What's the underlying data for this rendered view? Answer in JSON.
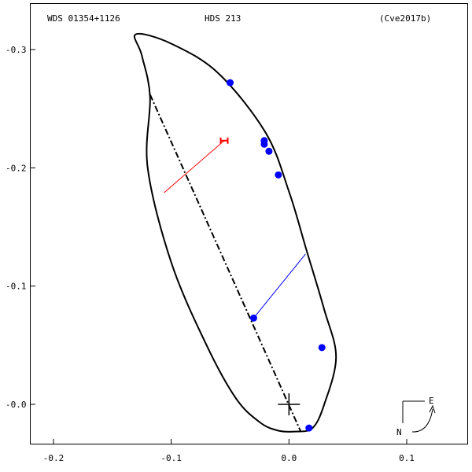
{
  "header": {
    "left": "WDS 01354+1126",
    "center": "HDS 213",
    "right": "(Cve2017b)"
  },
  "chart_data": {
    "type": "scatter",
    "title": "",
    "xlabel": "",
    "ylabel": "",
    "xlim": [
      -0.2,
      0.135
    ],
    "ylim": [
      0.345,
      -0.05
    ],
    "x_ticks": [
      {
        "value": -0.2,
        "label": "-0.2"
      },
      {
        "value": -0.1,
        "label": "-0.1"
      },
      {
        "value": 0.0,
        "label": "0.0"
      },
      {
        "value": 0.1,
        "label": "0.1"
      }
    ],
    "y_ticks": [
      {
        "value": 0.3,
        "label": "-0.3"
      },
      {
        "value": 0.2,
        "label": "-0.2"
      },
      {
        "value": 0.1,
        "label": "-0.1"
      },
      {
        "value": 0.0,
        "label": "-0.0"
      }
    ],
    "orbit": {
      "color": "#000000",
      "points": [
        [
          -0.13,
          0.313
        ],
        [
          -0.1,
          0.305
        ],
        [
          -0.06,
          0.28
        ],
        [
          -0.02,
          0.23
        ],
        [
          0.0,
          0.18
        ],
        [
          0.015,
          0.13
        ],
        [
          0.03,
          0.08
        ],
        [
          0.04,
          0.04
        ],
        [
          0.03,
          0.0
        ],
        [
          0.02,
          -0.02
        ],
        [
          0.005,
          -0.023
        ],
        [
          -0.01,
          -0.022
        ],
        [
          -0.025,
          -0.015
        ],
        [
          -0.045,
          0.005
        ],
        [
          -0.07,
          0.05
        ],
        [
          -0.1,
          0.12
        ],
        [
          -0.12,
          0.2
        ],
        [
          -0.118,
          0.26
        ],
        [
          -0.125,
          0.295
        ],
        [
          -0.13,
          0.313
        ]
      ]
    },
    "line_of_nodes": {
      "from": [
        -0.118,
        0.262
      ],
      "to": [
        0.01,
        -0.023
      ],
      "color": "#000000"
    },
    "observations": {
      "color": "#0000ff",
      "points": [
        [
          -0.05,
          0.272
        ],
        [
          -0.021,
          0.223
        ],
        [
          -0.021,
          0.22
        ],
        [
          -0.017,
          0.214
        ],
        [
          -0.009,
          0.194
        ],
        [
          -0.03,
          0.073
        ],
        [
          0.028,
          0.048
        ],
        [
          0.017,
          -0.02
        ]
      ]
    },
    "residuals": [
      {
        "from": [
          -0.03,
          0.073
        ],
        "to": [
          0.014,
          0.127
        ],
        "color": "#0000ff"
      },
      {
        "from": [
          -0.055,
          0.223
        ],
        "to": [
          -0.106,
          0.179
        ],
        "color": "#ff0000"
      }
    ],
    "error_bar": {
      "x": [
        -0.058,
        -0.052
      ],
      "y": 0.223,
      "color": "#ff0000"
    },
    "primary": {
      "x": 0.0,
      "y": 0.0
    },
    "compass": {
      "east": "E",
      "north": "N"
    }
  }
}
